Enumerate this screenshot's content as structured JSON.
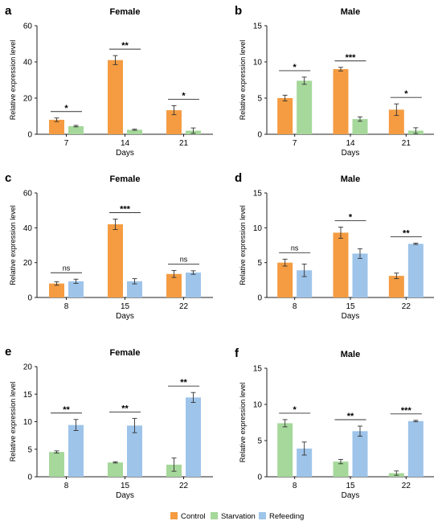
{
  "legend": {
    "items": [
      {
        "label": "Control",
        "color": "#f59c42"
      },
      {
        "label": "Starvation",
        "color": "#a5d89a"
      },
      {
        "label": "Refeeding",
        "color": "#9ec4ea"
      }
    ]
  },
  "chart_data": [
    {
      "panel": "a",
      "type": "bar",
      "title": "Female",
      "xlabel": "Days",
      "ylabel": "Relative expression level",
      "ylim": [
        0,
        60
      ],
      "yticks": [
        0,
        20,
        40,
        60
      ],
      "categories": [
        "7",
        "14",
        "21"
      ],
      "series": [
        {
          "name": "Control",
          "color": "#f59c42",
          "values": [
            8,
            41,
            13.3
          ],
          "errors": [
            1,
            2.5,
            2.5
          ]
        },
        {
          "name": "Starvation",
          "color": "#a5d89a",
          "values": [
            4.5,
            2.5,
            2
          ],
          "errors": [
            0.4,
            0.3,
            1.5
          ]
        }
      ],
      "significance": [
        "*",
        "**",
        "*"
      ]
    },
    {
      "panel": "b",
      "type": "bar",
      "title": "Male",
      "xlabel": "Days",
      "ylabel": "Relative expression level",
      "ylim": [
        0,
        15
      ],
      "yticks": [
        0,
        5,
        10,
        15
      ],
      "categories": [
        "7",
        "14",
        "21"
      ],
      "series": [
        {
          "name": "Control",
          "color": "#f59c42",
          "values": [
            5,
            9,
            3.4
          ],
          "errors": [
            0.4,
            0.25,
            0.8
          ]
        },
        {
          "name": "Starvation",
          "color": "#a5d89a",
          "values": [
            7.4,
            2.1,
            0.5
          ],
          "errors": [
            0.5,
            0.3,
            0.4
          ]
        }
      ],
      "significance": [
        "*",
        "***",
        "*"
      ]
    },
    {
      "panel": "c",
      "type": "bar",
      "title": "Female",
      "xlabel": "Days",
      "ylabel": "Relative expression level",
      "ylim": [
        0,
        60
      ],
      "yticks": [
        0,
        20,
        40,
        60
      ],
      "categories": [
        "8",
        "15",
        "22"
      ],
      "series": [
        {
          "name": "Control",
          "color": "#f59c42",
          "values": [
            8,
            42,
            13.5
          ],
          "errors": [
            1,
            3,
            2
          ]
        },
        {
          "name": "Refeeding",
          "color": "#9ec4ea",
          "values": [
            9.3,
            9.3,
            14.3
          ],
          "errors": [
            1.2,
            1.5,
            1
          ]
        }
      ],
      "significance": [
        "ns",
        "***",
        "ns"
      ]
    },
    {
      "panel": "d",
      "type": "bar",
      "title": "Male",
      "xlabel": "Days",
      "ylabel": "Relative expression level",
      "ylim": [
        0,
        15
      ],
      "yticks": [
        0,
        5,
        10,
        15
      ],
      "categories": [
        "8",
        "15",
        "22"
      ],
      "series": [
        {
          "name": "Control",
          "color": "#f59c42",
          "values": [
            5,
            9.3,
            3.1
          ],
          "errors": [
            0.5,
            0.8,
            0.4
          ]
        },
        {
          "name": "Refeeding",
          "color": "#9ec4ea",
          "values": [
            3.9,
            6.3,
            7.7
          ],
          "errors": [
            0.9,
            0.7,
            0.1
          ]
        }
      ],
      "significance": [
        "ns",
        "*",
        "**"
      ]
    },
    {
      "panel": "e",
      "type": "bar",
      "title": "Female",
      "xlabel": "Days",
      "ylabel": "Relative expression level",
      "ylim": [
        0,
        20
      ],
      "yticks": [
        0,
        5,
        10,
        15,
        20
      ],
      "categories": [
        "8",
        "15",
        "22"
      ],
      "series": [
        {
          "name": "Starvation",
          "color": "#a5d89a",
          "values": [
            4.5,
            2.6,
            2.2
          ],
          "errors": [
            0.2,
            0.1,
            1.2
          ]
        },
        {
          "name": "Refeeding",
          "color": "#9ec4ea",
          "values": [
            9.4,
            9.3,
            14.4
          ],
          "errors": [
            1,
            1.3,
            0.9
          ]
        }
      ],
      "significance": [
        "**",
        "**",
        "**"
      ]
    },
    {
      "panel": "f",
      "type": "bar",
      "title": "Male",
      "xlabel": "Days",
      "ylabel": "Relative expression level",
      "ylim": [
        0,
        15
      ],
      "yticks": [
        0,
        5,
        10,
        15
      ],
      "categories": [
        "8",
        "15",
        "22"
      ],
      "series": [
        {
          "name": "Starvation",
          "color": "#a5d89a",
          "values": [
            7.4,
            2.1,
            0.5
          ],
          "errors": [
            0.5,
            0.3,
            0.3
          ]
        },
        {
          "name": "Refeeding",
          "color": "#9ec4ea",
          "values": [
            3.9,
            6.3,
            7.7
          ],
          "errors": [
            0.9,
            0.7,
            0.1
          ]
        }
      ],
      "significance": [
        "*",
        "**",
        "***"
      ]
    }
  ]
}
